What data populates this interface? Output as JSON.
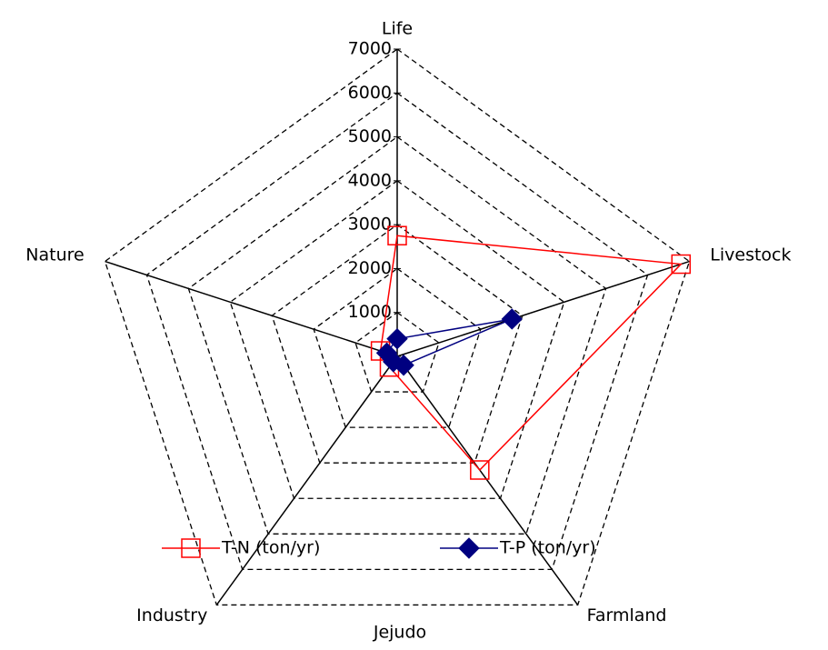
{
  "chart_data": {
    "type": "radar",
    "title": "Jejudo",
    "categories": [
      "Life",
      "Livestock",
      "Farmland",
      "Industry",
      "Nature"
    ],
    "series": [
      {
        "name": "T-N (ton/yr)",
        "color": "#ff0000",
        "marker": "square",
        "values": [
          2750,
          6800,
          3200,
          300,
          400
        ]
      },
      {
        "name": "T-P (ton/yr)",
        "color": "#000080",
        "marker": "diamond",
        "values": [
          400,
          2750,
          250,
          150,
          250
        ]
      }
    ],
    "ylim": [
      0,
      7000
    ],
    "yticks": [
      0,
      1000,
      2000,
      3000,
      4000,
      5000,
      6000,
      7000
    ],
    "grid": true
  }
}
